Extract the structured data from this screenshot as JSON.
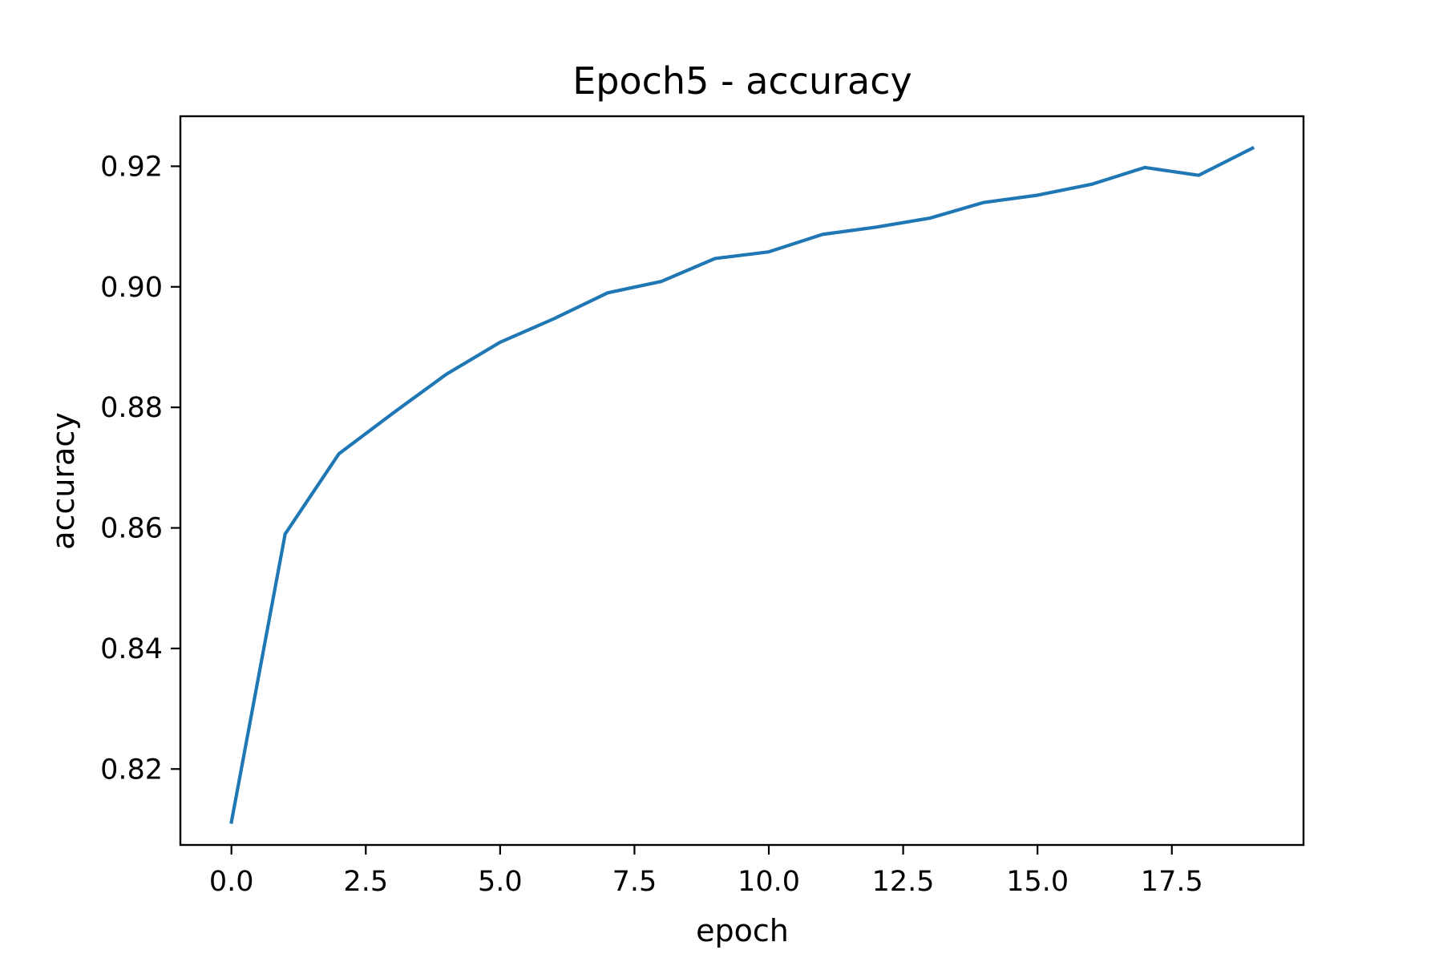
{
  "chart_data": {
    "type": "line",
    "title": "Epoch5 - accuracy",
    "xlabel": "epoch",
    "ylabel": "accuracy",
    "x": [
      0,
      1,
      2,
      3,
      4,
      5,
      6,
      7,
      8,
      9,
      10,
      11,
      12,
      13,
      14,
      15,
      16,
      17,
      18,
      19
    ],
    "series": [
      {
        "values": [
          0.8112,
          0.859,
          0.8723,
          0.879,
          0.8855,
          0.8908,
          0.8947,
          0.899,
          0.9009,
          0.9047,
          0.9058,
          0.9087,
          0.9099,
          0.9114,
          0.914,
          0.9152,
          0.917,
          0.9198,
          0.9185,
          0.923
        ],
        "color": "#1f77b4"
      }
    ],
    "xlim": [
      -0.95,
      19.95
    ],
    "ylim": [
      0.8074,
      0.9283
    ],
    "xticks": [
      0.0,
      2.5,
      5.0,
      7.5,
      10.0,
      12.5,
      15.0,
      17.5
    ],
    "xtick_labels": [
      "0.0",
      "2.5",
      "5.0",
      "7.5",
      "10.0",
      "12.5",
      "15.0",
      "17.5"
    ],
    "yticks": [
      0.82,
      0.84,
      0.86,
      0.88,
      0.9,
      0.92
    ],
    "ytick_labels": [
      "0.82",
      "0.84",
      "0.86",
      "0.88",
      "0.90",
      "0.92"
    ],
    "grid": false,
    "legend": "none"
  }
}
